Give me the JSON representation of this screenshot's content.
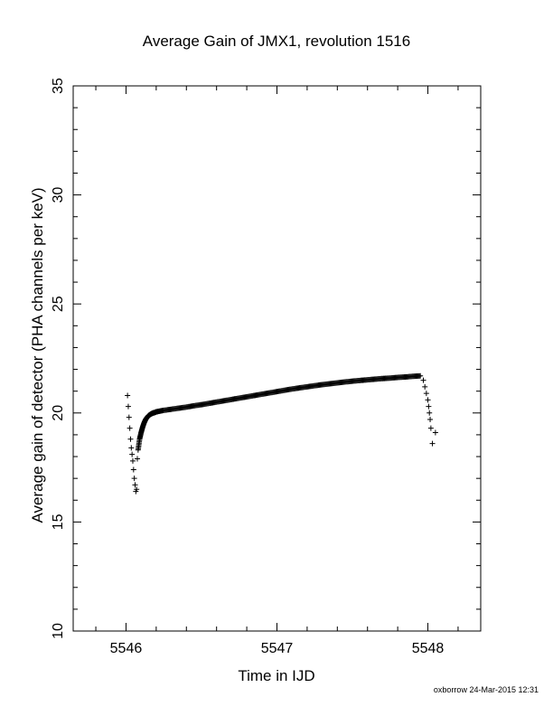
{
  "chart_data": {
    "type": "scatter",
    "title": "Average Gain of JMX1, revolution 1516",
    "xlabel": "Time in IJD",
    "ylabel": "Average gain of detector (PHA channels per keV)",
    "xlim": [
      5545.65,
      5548.35
    ],
    "ylim": [
      10,
      35
    ],
    "xticks": [
      5546,
      5547,
      5548
    ],
    "yticks": [
      10,
      15,
      20,
      25,
      30,
      35
    ],
    "marker": "+",
    "grid": false,
    "series": [
      {
        "x": [
          5546.01,
          5546.015,
          5546.02,
          5546.025,
          5546.03,
          5546.035,
          5546.04,
          5546.045,
          5546.05,
          5546.055,
          5546.06,
          5546.065,
          5546.07,
          5546.075,
          5546.08,
          5546.09,
          5546.1,
          5546.11,
          5546.12,
          5546.13,
          5546.14,
          5546.15,
          5546.16,
          5546.17,
          5546.18,
          5546.19,
          5546.2,
          5546.22,
          5546.25,
          5546.3,
          5546.35,
          5546.4,
          5546.45,
          5546.5,
          5546.55,
          5546.6,
          5546.65,
          5546.7,
          5546.75,
          5546.8,
          5546.85,
          5546.9,
          5546.95,
          5547.0,
          5547.05,
          5547.1,
          5547.15,
          5547.2,
          5547.25,
          5547.3,
          5547.35,
          5547.4,
          5547.45,
          5547.5,
          5547.55,
          5547.6,
          5547.65,
          5547.7,
          5547.75,
          5547.8,
          5547.85,
          5547.9,
          5547.95,
          5547.97,
          5547.98,
          5547.99,
          5548.0,
          5548.005,
          5548.01,
          5548.015,
          5548.02,
          5548.03,
          5548.05
        ],
        "y": [
          20.8,
          20.3,
          19.8,
          19.3,
          18.8,
          18.4,
          18.1,
          17.8,
          17.4,
          17.0,
          16.7,
          16.4,
          16.5,
          17.9,
          18.3,
          18.8,
          19.1,
          19.35,
          19.55,
          19.7,
          19.8,
          19.88,
          19.93,
          19.97,
          20.0,
          20.02,
          20.05,
          20.08,
          20.12,
          20.17,
          20.22,
          20.27,
          20.33,
          20.38,
          20.44,
          20.5,
          20.56,
          20.62,
          20.68,
          20.74,
          20.8,
          20.86,
          20.92,
          20.98,
          21.04,
          21.1,
          21.15,
          21.2,
          21.25,
          21.3,
          21.34,
          21.38,
          21.42,
          21.46,
          21.49,
          21.52,
          21.55,
          21.58,
          21.6,
          21.63,
          21.65,
          21.68,
          21.7,
          21.5,
          21.2,
          20.9,
          20.6,
          20.3,
          20.0,
          19.7,
          19.3,
          18.6,
          19.1
        ]
      }
    ]
  },
  "footer": "oxborrow 24-Mar-2015 12:31"
}
